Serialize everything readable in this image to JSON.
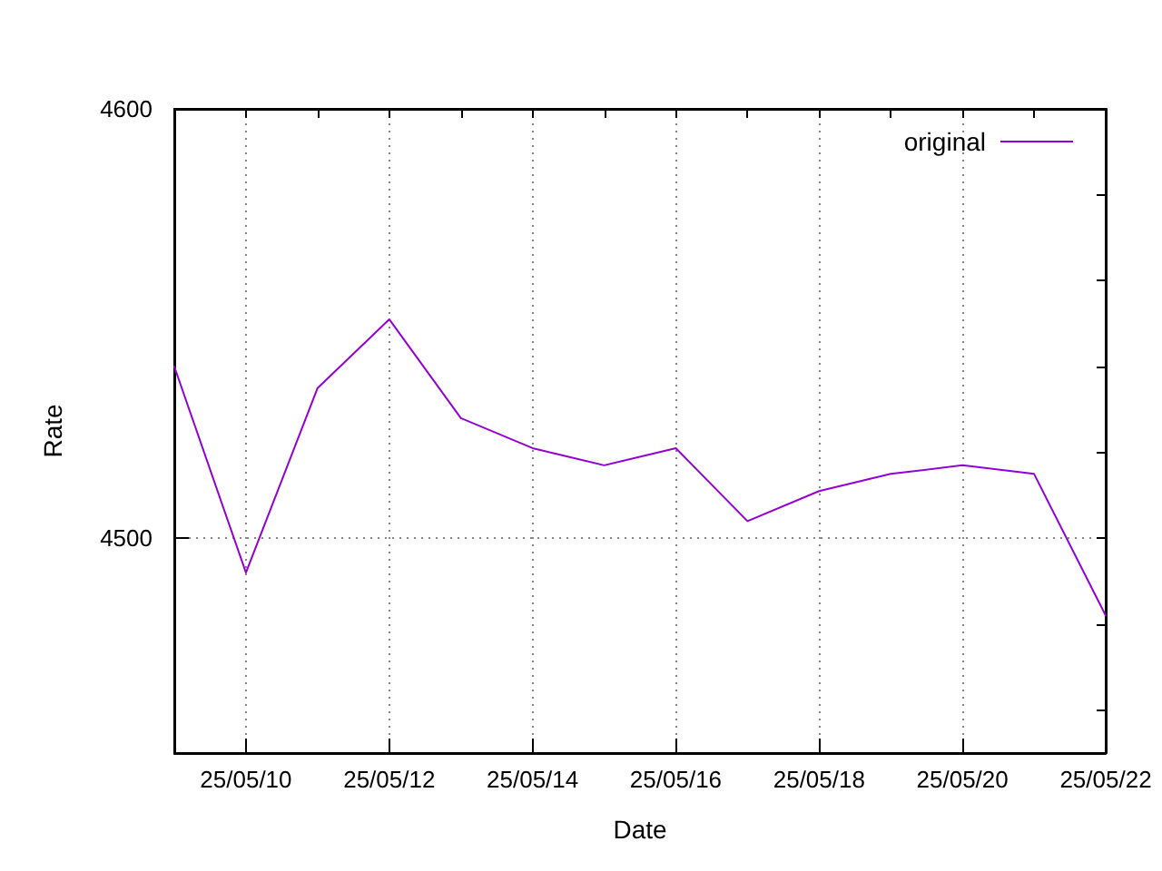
{
  "chart_data": {
    "type": "line",
    "xlabel": "Date",
    "ylabel": "Rate",
    "x": [
      "--05-09",
      "--05-10",
      "--05-11",
      "--05-12",
      "--05-13",
      "--05-14",
      "--05-15",
      "--05-16",
      "--05-17",
      "--05-18",
      "--05-19",
      "--05-20",
      "--05-21",
      "--05-22"
    ],
    "series": [
      {
        "name": "original",
        "color": "#9400d3",
        "values": [
          4540,
          4492,
          4535,
          4551,
          4528,
          4521,
          4517,
          4521,
          4504,
          4511,
          4515,
          4517,
          4515,
          4482
        ]
      }
    ],
    "xlim": [
      "--05-09",
      "--05-22"
    ],
    "xticks": [
      {
        "value": "--05-10",
        "label": "25/05/10"
      },
      {
        "value": "--05-11",
        "label": null
      },
      {
        "value": "--05-12",
        "label": "25/05/12"
      },
      {
        "value": "--05-13",
        "label": null
      },
      {
        "value": "--05-14",
        "label": "25/05/14"
      },
      {
        "value": "--05-15",
        "label": null
      },
      {
        "value": "--05-16",
        "label": "25/05/16"
      },
      {
        "value": "--05-17",
        "label": null
      },
      {
        "value": "--05-18",
        "label": "25/05/18"
      },
      {
        "value": "--05-19",
        "label": null
      },
      {
        "value": "--05-20",
        "label": "25/05/20"
      },
      {
        "value": "--05-21",
        "label": null
      },
      {
        "value": "--05-22",
        "label": "25/05/22"
      }
    ],
    "ylim": [
      4450,
      4600
    ],
    "yticks": [
      {
        "value": 4460,
        "label": null
      },
      {
        "value": 4480,
        "label": null
      },
      4500,
      {
        "value": 4520,
        "label": null
      },
      {
        "value": 4540,
        "label": null
      },
      {
        "value": 4560,
        "label": null
      },
      {
        "value": 4580,
        "label": null
      },
      4600
    ],
    "grid": true,
    "legend": "top right",
    "marker": "none",
    "line_style": "solid"
  }
}
